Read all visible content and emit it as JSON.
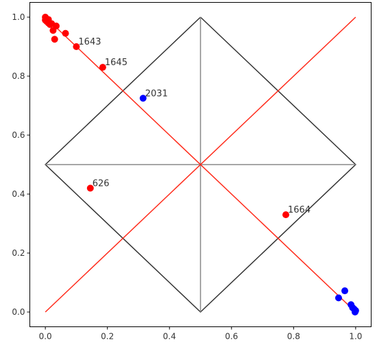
{
  "chart_data": {
    "type": "scatter",
    "title": "",
    "xlabel": "",
    "ylabel": "",
    "xlim": [
      -0.05,
      1.05
    ],
    "ylim": [
      -0.05,
      1.05
    ],
    "xticks": [
      0.0,
      0.2,
      0.4,
      0.6,
      0.8,
      1.0
    ],
    "yticks": [
      0.0,
      0.2,
      0.4,
      0.6,
      0.8,
      1.0
    ],
    "xtick_labels": [
      "0.0",
      "0.2",
      "0.4",
      "0.6",
      "0.8",
      "1.0"
    ],
    "ytick_labels": [
      "0.0",
      "0.2",
      "0.4",
      "0.6",
      "0.8",
      "1.0"
    ],
    "grid": false,
    "legend": "none",
    "lines": [
      {
        "color": "#333333",
        "points": [
          [
            0.5,
            1.0
          ],
          [
            1.0,
            0.5
          ],
          [
            0.5,
            0.0
          ],
          [
            0.0,
            0.5
          ],
          [
            0.5,
            1.0
          ]
        ]
      },
      {
        "color": "#888888",
        "points": [
          [
            0.5,
            0.0
          ],
          [
            0.5,
            1.0
          ]
        ]
      },
      {
        "color": "#888888",
        "points": [
          [
            0.0,
            0.5
          ],
          [
            1.0,
            0.5
          ]
        ]
      },
      {
        "color": "#ff2a1a",
        "points": [
          [
            0.0,
            0.0
          ],
          [
            1.0,
            1.0
          ]
        ]
      },
      {
        "color": "#ff2a1a",
        "points": [
          [
            0.0,
            1.0
          ],
          [
            1.0,
            0.0
          ]
        ]
      }
    ],
    "series": [
      {
        "color": "#ff0000",
        "points": [
          [
            0.0,
            1.0
          ],
          [
            0.0,
            0.99
          ],
          [
            0.005,
            0.985
          ],
          [
            0.01,
            0.992
          ],
          [
            0.01,
            0.98
          ],
          [
            0.015,
            0.975
          ],
          [
            0.02,
            0.978
          ],
          [
            0.025,
            0.955
          ],
          [
            0.03,
            0.925
          ],
          [
            0.035,
            0.97
          ],
          [
            0.065,
            0.945
          ],
          [
            0.1,
            0.9
          ],
          [
            0.185,
            0.83
          ],
          [
            0.145,
            0.42
          ],
          [
            0.775,
            0.33
          ]
        ]
      },
      {
        "color": "#0000ff",
        "points": [
          [
            0.315,
            0.725
          ],
          [
            0.945,
            0.048
          ],
          [
            0.965,
            0.072
          ],
          [
            0.985,
            0.025
          ],
          [
            0.99,
            0.015
          ],
          [
            0.995,
            0.01
          ],
          [
            1.0,
            0.005
          ],
          [
            0.998,
            0.0
          ]
        ]
      }
    ],
    "annotations": [
      {
        "text": "1643",
        "x": 0.1,
        "y": 0.9
      },
      {
        "text": "1645",
        "x": 0.185,
        "y": 0.83
      },
      {
        "text": "2031",
        "x": 0.315,
        "y": 0.725
      },
      {
        "text": "626",
        "x": 0.145,
        "y": 0.42
      },
      {
        "text": "1664",
        "x": 0.775,
        "y": 0.33
      }
    ]
  }
}
